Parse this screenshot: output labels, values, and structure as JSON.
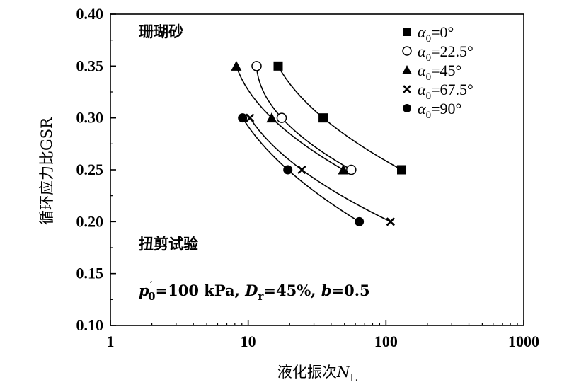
{
  "chart_data": {
    "type": "scatter",
    "x_scale": "log",
    "xlim": [
      1,
      1000
    ],
    "ylim": [
      0.1,
      0.4
    ],
    "x_ticks": [
      1,
      10,
      100,
      1000
    ],
    "x_tick_labels": [
      "1",
      "10",
      "100",
      "1000"
    ],
    "y_ticks": [
      0.1,
      0.15,
      0.2,
      0.25,
      0.3,
      0.35,
      0.4
    ],
    "y_tick_labels": [
      "0.10",
      "0.15",
      "0.20",
      "0.25",
      "0.30",
      "0.35",
      "0.40"
    ],
    "xlabel": "液化振次",
    "xlabel_symbol": "N",
    "xlabel_subscript": "L",
    "ylabel": "循环应力比GSR",
    "grid": false,
    "legend_position": "top-right",
    "annotations": {
      "material": "珊瑚砂",
      "test": "扭剪试验",
      "conditions": {
        "p_symbol": "p",
        "p_sub": "0",
        "p_value": "=100 kPa, ",
        "d_symbol": "D",
        "d_sub": "r",
        "d_value": "=45%, ",
        "b_symbol": "b",
        "b_value": "=0.5"
      }
    },
    "series": [
      {
        "name": "α0=0°",
        "legend_symbol": "α",
        "legend_sub": "0",
        "legend_value": "=0°",
        "marker": "square",
        "x": [
          16.5,
          35,
          130
        ],
        "y": [
          0.35,
          0.3,
          0.25
        ]
      },
      {
        "name": "α0=22.5°",
        "legend_symbol": "α",
        "legend_sub": "0",
        "legend_value": "=22.5°",
        "marker": "circle-open",
        "x": [
          11.5,
          17.5,
          56
        ],
        "y": [
          0.35,
          0.3,
          0.25
        ]
      },
      {
        "name": "α0=45°",
        "legend_symbol": "α",
        "legend_sub": "0",
        "legend_value": "=45°",
        "marker": "triangle",
        "x": [
          8.2,
          14.8,
          49
        ],
        "y": [
          0.35,
          0.3,
          0.25
        ]
      },
      {
        "name": "α0=67.5°",
        "legend_symbol": "α",
        "legend_sub": "0",
        "legend_value": "=67.5°",
        "marker": "x",
        "x": [
          10.3,
          24.5,
          108
        ],
        "y": [
          0.3,
          0.25,
          0.2
        ]
      },
      {
        "name": "α0=90°",
        "legend_symbol": "α",
        "legend_sub": "0",
        "legend_value": "=90°",
        "marker": "circle-filled",
        "x": [
          9.1,
          19.4,
          64
        ],
        "y": [
          0.3,
          0.25,
          0.2
        ]
      }
    ]
  }
}
